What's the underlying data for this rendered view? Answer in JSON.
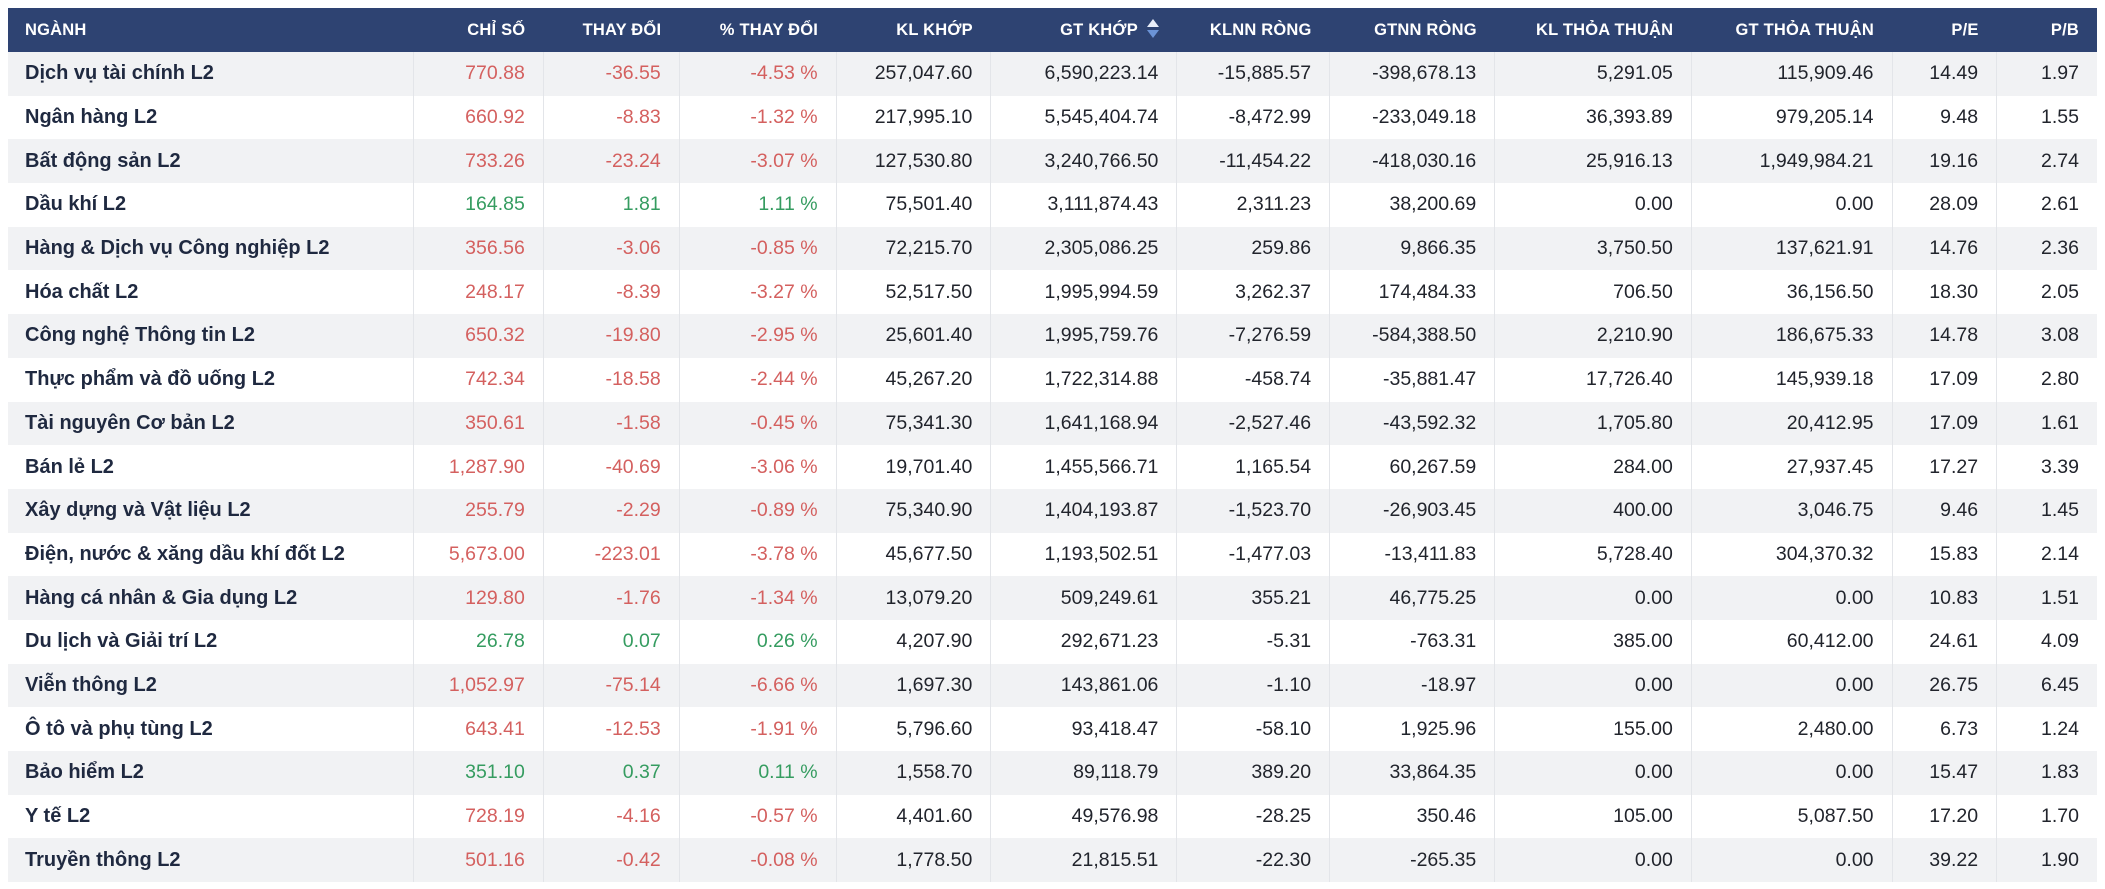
{
  "colors": {
    "header_bg": "#2e4372",
    "header_text": "#ffffff",
    "row_stripe": "#f1f2f4",
    "row_white": "#ffffff",
    "sector_name": "#1f2940",
    "number_text": "#21242c",
    "negative": "#d4605f",
    "positive": "#359c60",
    "divider": "#e3e5e9",
    "sort_up": "#e9eef9",
    "sort_down": "#6b93d6"
  },
  "sort": {
    "column": "GT KHỚP",
    "column_key": "gt_khop",
    "direction": "desc",
    "icon": "sort-arrows-icon"
  },
  "table": {
    "columns": [
      {
        "key": "nganh",
        "label": "NGÀNH"
      },
      {
        "key": "chi_so",
        "label": "CHỈ SỐ"
      },
      {
        "key": "thay_doi",
        "label": "THAY ĐỔI"
      },
      {
        "key": "pct_thay_doi",
        "label": "% THAY ĐỔI"
      },
      {
        "key": "kl_khop",
        "label": "KL KHỚP"
      },
      {
        "key": "gt_khop",
        "label": "GT KHỚP"
      },
      {
        "key": "klnn_rong",
        "label": "KLNN RÒNG"
      },
      {
        "key": "gtnn_rong",
        "label": "GTNN RÒNG"
      },
      {
        "key": "kl_thoa_thuan",
        "label": "KL THỎA THUẬN"
      },
      {
        "key": "gt_thoa_thuan",
        "label": "GT THỎA THUẬN"
      },
      {
        "key": "pe",
        "label": "P/E"
      },
      {
        "key": "pb",
        "label": "P/B"
      }
    ],
    "rows": [
      {
        "name": "Dịch vụ tài chính L2",
        "trend": "down",
        "cells": [
          "770.88",
          "-36.55",
          "-4.53 %",
          "257,047.60",
          "6,590,223.14",
          "-15,885.57",
          "-398,678.13",
          "5,291.05",
          "115,909.46",
          "14.49",
          "1.97"
        ]
      },
      {
        "name": "Ngân hàng L2",
        "trend": "down",
        "cells": [
          "660.92",
          "-8.83",
          "-1.32 %",
          "217,995.10",
          "5,545,404.74",
          "-8,472.99",
          "-233,049.18",
          "36,393.89",
          "979,205.14",
          "9.48",
          "1.55"
        ]
      },
      {
        "name": "Bất động sản L2",
        "trend": "down",
        "cells": [
          "733.26",
          "-23.24",
          "-3.07 %",
          "127,530.80",
          "3,240,766.50",
          "-11,454.22",
          "-418,030.16",
          "25,916.13",
          "1,949,984.21",
          "19.16",
          "2.74"
        ]
      },
      {
        "name": "Dầu khí L2",
        "trend": "up",
        "cells": [
          "164.85",
          "1.81",
          "1.11 %",
          "75,501.40",
          "3,111,874.43",
          "2,311.23",
          "38,200.69",
          "0.00",
          "0.00",
          "28.09",
          "2.61"
        ]
      },
      {
        "name": "Hàng & Dịch vụ Công nghiệp L2",
        "trend": "down",
        "cells": [
          "356.56",
          "-3.06",
          "-0.85 %",
          "72,215.70",
          "2,305,086.25",
          "259.86",
          "9,866.35",
          "3,750.50",
          "137,621.91",
          "14.76",
          "2.36"
        ]
      },
      {
        "name": "Hóa chất L2",
        "trend": "down",
        "cells": [
          "248.17",
          "-8.39",
          "-3.27 %",
          "52,517.50",
          "1,995,994.59",
          "3,262.37",
          "174,484.33",
          "706.50",
          "36,156.50",
          "18.30",
          "2.05"
        ]
      },
      {
        "name": "Công nghệ Thông tin L2",
        "trend": "down",
        "cells": [
          "650.32",
          "-19.80",
          "-2.95 %",
          "25,601.40",
          "1,995,759.76",
          "-7,276.59",
          "-584,388.50",
          "2,210.90",
          "186,675.33",
          "14.78",
          "3.08"
        ]
      },
      {
        "name": "Thực phẩm và đồ uống L2",
        "trend": "down",
        "cells": [
          "742.34",
          "-18.58",
          "-2.44 %",
          "45,267.20",
          "1,722,314.88",
          "-458.74",
          "-35,881.47",
          "17,726.40",
          "145,939.18",
          "17.09",
          "2.80"
        ]
      },
      {
        "name": "Tài nguyên Cơ bản L2",
        "trend": "down",
        "cells": [
          "350.61",
          "-1.58",
          "-0.45 %",
          "75,341.30",
          "1,641,168.94",
          "-2,527.46",
          "-43,592.32",
          "1,705.80",
          "20,412.95",
          "17.09",
          "1.61"
        ]
      },
      {
        "name": "Bán lẻ L2",
        "trend": "down",
        "cells": [
          "1,287.90",
          "-40.69",
          "-3.06 %",
          "19,701.40",
          "1,455,566.71",
          "1,165.54",
          "60,267.59",
          "284.00",
          "27,937.45",
          "17.27",
          "3.39"
        ]
      },
      {
        "name": "Xây dựng và Vật liệu L2",
        "trend": "down",
        "cells": [
          "255.79",
          "-2.29",
          "-0.89 %",
          "75,340.90",
          "1,404,193.87",
          "-1,523.70",
          "-26,903.45",
          "400.00",
          "3,046.75",
          "9.46",
          "1.45"
        ]
      },
      {
        "name": "Điện, nước & xăng dầu khí đốt L2",
        "trend": "down",
        "cells": [
          "5,673.00",
          "-223.01",
          "-3.78 %",
          "45,677.50",
          "1,193,502.51",
          "-1,477.03",
          "-13,411.83",
          "5,728.40",
          "304,370.32",
          "15.83",
          "2.14"
        ]
      },
      {
        "name": "Hàng cá nhân & Gia dụng L2",
        "trend": "down",
        "cells": [
          "129.80",
          "-1.76",
          "-1.34 %",
          "13,079.20",
          "509,249.61",
          "355.21",
          "46,775.25",
          "0.00",
          "0.00",
          "10.83",
          "1.51"
        ]
      },
      {
        "name": "Du lịch và Giải trí L2",
        "trend": "up",
        "cells": [
          "26.78",
          "0.07",
          "0.26 %",
          "4,207.90",
          "292,671.23",
          "-5.31",
          "-763.31",
          "385.00",
          "60,412.00",
          "24.61",
          "4.09"
        ]
      },
      {
        "name": "Viễn thông L2",
        "trend": "down",
        "cells": [
          "1,052.97",
          "-75.14",
          "-6.66 %",
          "1,697.30",
          "143,861.06",
          "-1.10",
          "-18.97",
          "0.00",
          "0.00",
          "26.75",
          "6.45"
        ]
      },
      {
        "name": "Ô tô và phụ tùng L2",
        "trend": "down",
        "cells": [
          "643.41",
          "-12.53",
          "-1.91 %",
          "5,796.60",
          "93,418.47",
          "-58.10",
          "1,925.96",
          "155.00",
          "2,480.00",
          "6.73",
          "1.24"
        ]
      },
      {
        "name": "Bảo hiểm L2",
        "trend": "up",
        "cells": [
          "351.10",
          "0.37",
          "0.11 %",
          "1,558.70",
          "89,118.79",
          "389.20",
          "33,864.35",
          "0.00",
          "0.00",
          "15.47",
          "1.83"
        ]
      },
      {
        "name": "Y tế L2",
        "trend": "down",
        "cells": [
          "728.19",
          "-4.16",
          "-0.57 %",
          "4,401.60",
          "49,576.98",
          "-28.25",
          "350.46",
          "105.00",
          "5,087.50",
          "17.20",
          "1.70"
        ]
      },
      {
        "name": "Truyền thông L2",
        "trend": "down",
        "cells": [
          "501.16",
          "-0.42",
          "-0.08 %",
          "1,778.50",
          "21,815.51",
          "-22.30",
          "-265.35",
          "0.00",
          "0.00",
          "39.22",
          "1.90"
        ]
      }
    ]
  }
}
